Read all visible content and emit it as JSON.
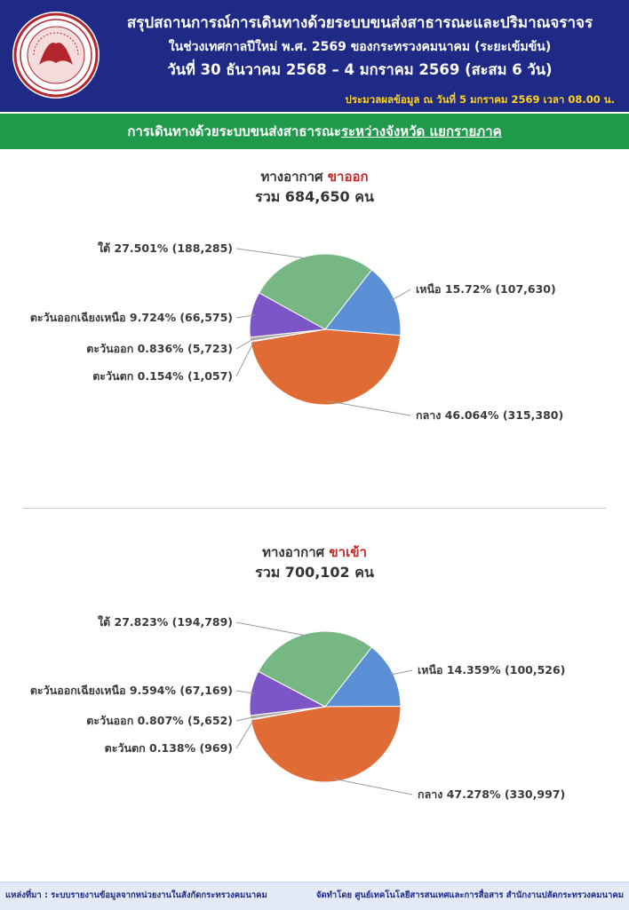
{
  "header": {
    "title": "สรุปสถานการณ์การเดินทางด้วยระบบขนส่งสาธารณะและปริมาณจราจร",
    "subtitle": "ในช่วงเทศกาลปีใหม่ พ.ศ. 2569 ของกระทรวงคมนาคม (ระยะเข้มข้น)",
    "dates": "วันที่ 30 ธันวาคม 2568 – 4 มกราคม 2569 (สะสม 6 วัน)",
    "as_of": "ประมวลผลข้อมูล ณ วันที่ 5 มกราคม 2569 เวลา 08.00 น."
  },
  "section_bar": {
    "prefix": "การเดินทางด้วยระบบขนส่งสาธารณะ",
    "underlined": "ระหว่างจังหวัด แยกรายภาค"
  },
  "colors": {
    "header_bg": "#1e2a86",
    "bar_bg": "#1f9a4a",
    "as_of_text": "#ffd21f",
    "direction_text": "#c62828",
    "north": "#5b8fd6",
    "central": "#e06b35",
    "west": "#2b3f8f",
    "east": "#a9a9a9",
    "northeast": "#7c55c6",
    "south": "#77b783"
  },
  "chart_data": [
    {
      "type": "pie",
      "title_prefix": "ทางอากาศ",
      "title_direction": "ขาออก",
      "total_label": "รวม 684,650 คน",
      "slices": [
        {
          "name": "เหนือ",
          "percent": 15.72,
          "value": 107630,
          "label": "เหนือ 15.72% (107,630)",
          "color": "#5b8fd6"
        },
        {
          "name": "กลาง",
          "percent": 46.064,
          "value": 315380,
          "label": "กลาง 46.064% (315,380)",
          "color": "#e06b35"
        },
        {
          "name": "ตะวันตก",
          "percent": 0.154,
          "value": 1057,
          "label": "ตะวันตก 0.154% (1,057)",
          "color": "#2b3f8f"
        },
        {
          "name": "ตะวันออก",
          "percent": 0.836,
          "value": 5723,
          "label": "ตะวันออก 0.836% (5,723)",
          "color": "#a9a9a9"
        },
        {
          "name": "ตะวันออกเฉียงเหนือ",
          "percent": 9.724,
          "value": 66575,
          "label": "ตะวันออกเฉียงเหนือ 9.724% (66,575)",
          "color": "#7c55c6"
        },
        {
          "name": "ใต้",
          "percent": 27.501,
          "value": 188285,
          "label": "ใต้ 27.501% (188,285)",
          "color": "#77b783"
        }
      ]
    },
    {
      "type": "pie",
      "title_prefix": "ทางอากาศ",
      "title_direction": "ขาเข้า",
      "total_label": "รวม 700,102 คน",
      "slices": [
        {
          "name": "เหนือ",
          "percent": 14.359,
          "value": 100526,
          "label": "เหนือ 14.359% (100,526)",
          "color": "#5b8fd6"
        },
        {
          "name": "กลาง",
          "percent": 47.278,
          "value": 330997,
          "label": "กลาง 47.278% (330,997)",
          "color": "#e06b35"
        },
        {
          "name": "ตะวันตก",
          "percent": 0.138,
          "value": 969,
          "label": "ตะวันตก 0.138% (969)",
          "color": "#2b3f8f"
        },
        {
          "name": "ตะวันออก",
          "percent": 0.807,
          "value": 5652,
          "label": "ตะวันออก 0.807% (5,652)",
          "color": "#a9a9a9"
        },
        {
          "name": "ตะวันออกเฉียงเหนือ",
          "percent": 9.594,
          "value": 67169,
          "label": "ตะวันออกเฉียงเหนือ 9.594% (67,169)",
          "color": "#7c55c6"
        },
        {
          "name": "ใต้",
          "percent": 27.823,
          "value": 194789,
          "label": "ใต้ 27.823% (194,789)",
          "color": "#77b783"
        }
      ]
    }
  ],
  "footer": {
    "source": "แหล่งที่มา : ระบบรายงานข้อมูลจากหน่วยงานในสังกัดกระทรวงคมนาคม",
    "credit": "จัดทำโดย ศูนย์เทคโนโลยีสารสนเทศและการสื่อสาร สำนักงานปลัดกระทรวงคมนาคม"
  }
}
